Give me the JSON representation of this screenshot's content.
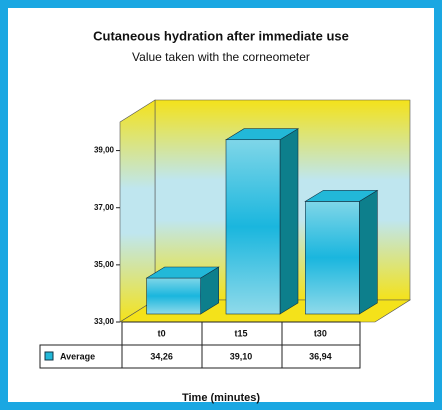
{
  "chart_data": {
    "type": "bar3d",
    "title": "Cutaneous hydration after immediate use",
    "subtitle": "Value taken with the corneometer",
    "x_label": "Time (minutes)",
    "categories": [
      "t0",
      "t15",
      "t30"
    ],
    "series": [
      {
        "name": "Average",
        "color": "#22b8d8",
        "values": [
          34.26,
          39.1,
          36.94
        ],
        "value_labels": [
          "34,26",
          "39,10",
          "36,94"
        ]
      }
    ],
    "ylim": [
      33,
      40
    ],
    "yticks": [
      {
        "value": 33,
        "label": "33,00"
      },
      {
        "value": 35,
        "label": "35,00"
      },
      {
        "value": 37,
        "label": "37,00"
      },
      {
        "value": 39,
        "label": "39,00"
      }
    ]
  }
}
